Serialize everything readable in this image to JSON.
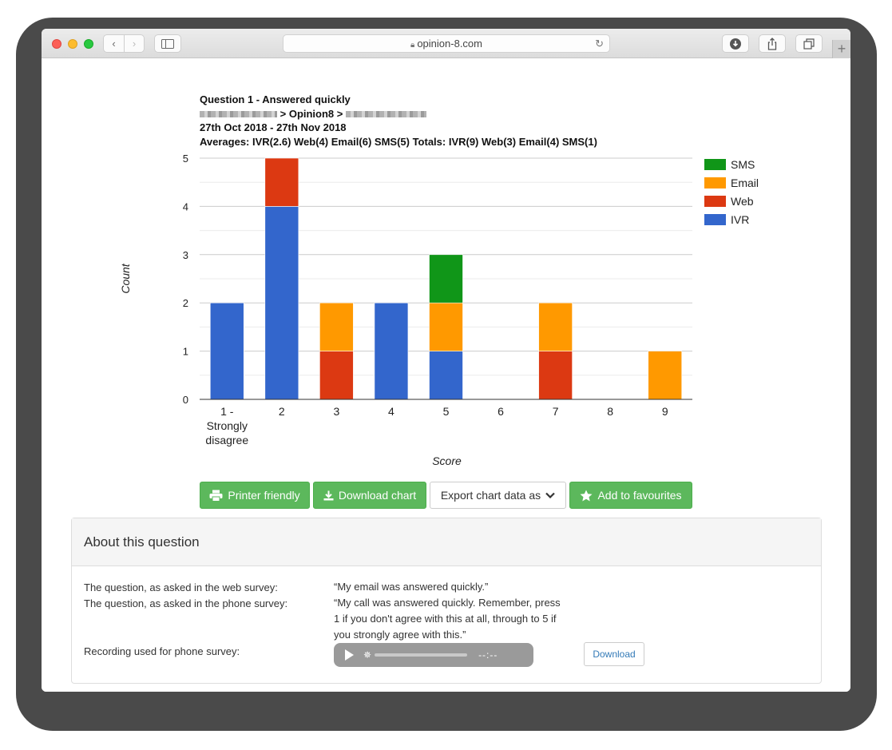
{
  "browser": {
    "url": "opinion-8.com"
  },
  "chart_header": {
    "title": "Question 1 - Answered quickly",
    "breadcrumb_mid": "> Opinion8 >",
    "date_range": "27th Oct 2018 - 27th Nov 2018",
    "summary": "Averages: IVR(2.6) Web(4) Email(6) SMS(5) Totals: IVR(9) Web(3) Email(4) SMS(1)"
  },
  "chart_data": {
    "type": "bar",
    "stacked": true,
    "categories": [
      "1 - Strongly disagree",
      "2",
      "3",
      "4",
      "5",
      "6",
      "7",
      "8",
      "9"
    ],
    "series": [
      {
        "name": "IVR",
        "color": "#3366cc",
        "values": [
          2,
          4,
          0,
          2,
          1,
          0,
          0,
          0,
          0
        ]
      },
      {
        "name": "Web",
        "color": "#dc3912",
        "values": [
          0,
          1,
          1,
          0,
          0,
          0,
          1,
          0,
          0
        ]
      },
      {
        "name": "Email",
        "color": "#ff9900",
        "values": [
          0,
          0,
          1,
          0,
          1,
          0,
          1,
          0,
          1
        ]
      },
      {
        "name": "SMS",
        "color": "#109618",
        "values": [
          0,
          0,
          0,
          0,
          1,
          0,
          0,
          0,
          0
        ]
      }
    ],
    "xlabel": "Score",
    "ylabel": "Count",
    "ylim": [
      0,
      5
    ],
    "yticks": [
      "0",
      "1",
      "2",
      "3",
      "4",
      "5"
    ],
    "legend_position": "right",
    "grid": true
  },
  "buttons": {
    "printer": "Printer friendly",
    "download_chart": "Download chart",
    "export": "Export chart data as",
    "favourites": "Add to favourites"
  },
  "about": {
    "heading": "About this question",
    "web_label": "The question, as asked in the web survey:",
    "web_value": "“My email was answered quickly.”",
    "phone_label": "The question, as asked in the phone survey:",
    "phone_value": "“My call was answered quickly. Remember, press 1 if you don't agree with this at all, through to 5 if you strongly agree with this.”",
    "recording_label": "Recording used for phone survey:",
    "audio_time": "--:--",
    "download": "Download"
  }
}
